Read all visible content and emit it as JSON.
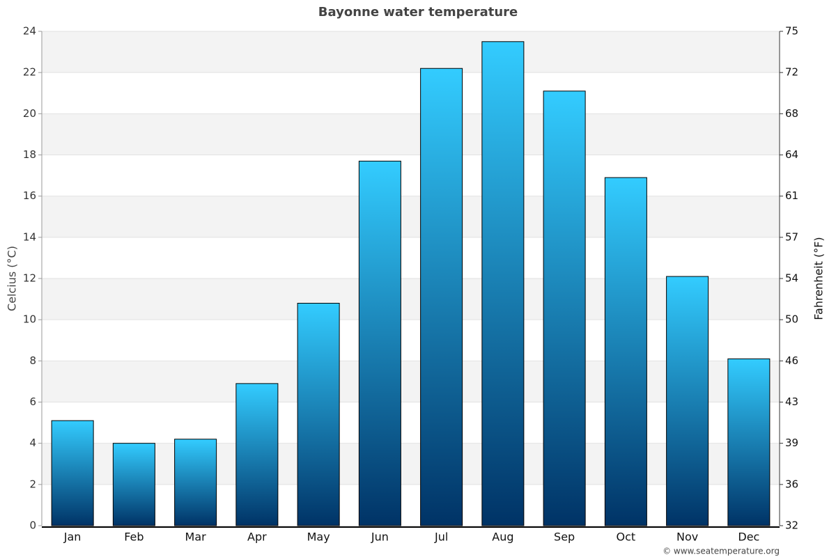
{
  "chart_data": {
    "type": "bar",
    "title": "Bayonne water temperature",
    "categories": [
      "Jan",
      "Feb",
      "Mar",
      "Apr",
      "May",
      "Jun",
      "Jul",
      "Aug",
      "Sep",
      "Oct",
      "Nov",
      "Dec"
    ],
    "values": [
      5.1,
      4.0,
      4.2,
      6.9,
      10.8,
      17.7,
      22.2,
      23.5,
      21.1,
      16.9,
      12.1,
      8.1
    ],
    "gradient": [
      "#33ccff",
      "#003366"
    ],
    "ylabel": "Celcius (°C)",
    "y2label": "Fahrenheit (°F)",
    "ylim": [
      0,
      24
    ],
    "yticks": [
      0,
      2,
      4,
      6,
      8,
      10,
      12,
      14,
      16,
      18,
      20,
      22,
      24
    ],
    "y2lim": [
      32,
      75.2
    ],
    "y2ticks": [
      32,
      {
        "value": 35.6,
        "label": "36"
      },
      {
        "value": 39.2,
        "label": "39"
      },
      {
        "value": 42.8,
        "label": "43"
      },
      {
        "value": 46.4,
        "label": "46"
      },
      50,
      {
        "value": 53.6,
        "label": "54"
      },
      {
        "value": 57.2,
        "label": "57"
      },
      {
        "value": 60.8,
        "label": "61"
      },
      {
        "value": 64.4,
        "label": "64"
      },
      68,
      {
        "value": 71.6,
        "label": "72"
      },
      {
        "value": 75.2,
        "label": "75"
      }
    ],
    "grid": true,
    "credit": "© www.seatemperature.org"
  }
}
